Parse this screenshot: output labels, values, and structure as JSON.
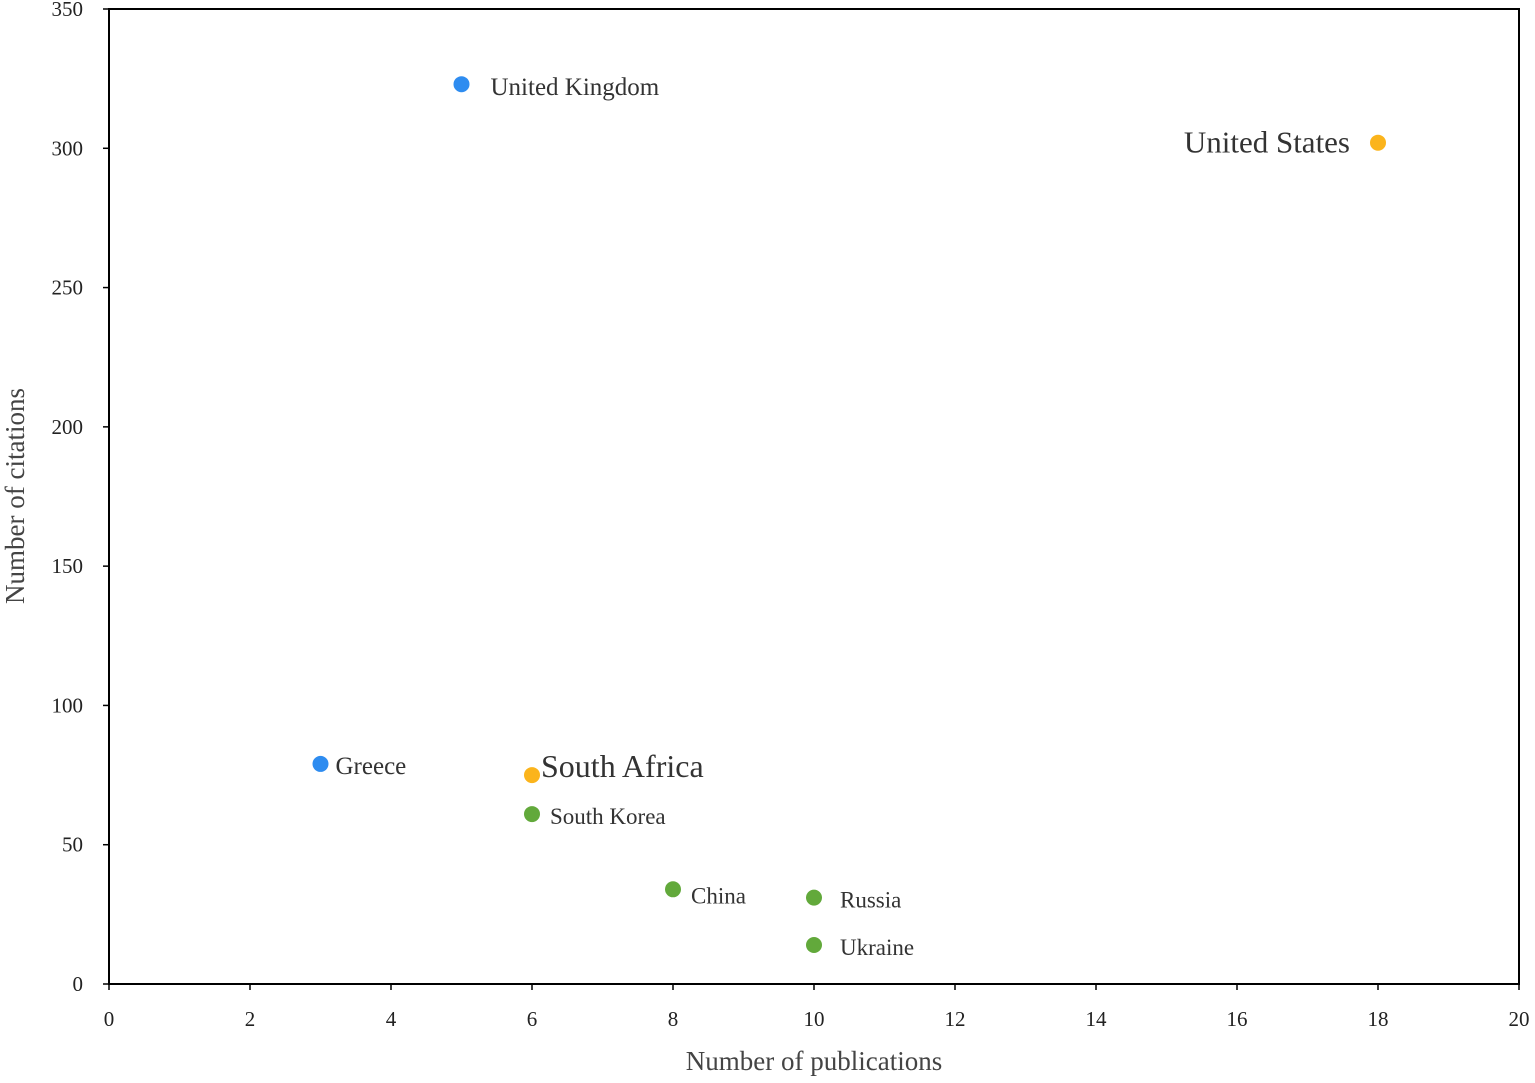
{
  "chart_data": {
    "type": "scatter",
    "title": "",
    "xlabel": "Number of publications",
    "ylabel": "Number of citations",
    "xlim": [
      0,
      20
    ],
    "ylim": [
      0,
      350
    ],
    "x_ticks": [
      0,
      2,
      4,
      6,
      8,
      10,
      12,
      14,
      16,
      18,
      20
    ],
    "y_ticks": [
      0,
      50,
      100,
      150,
      200,
      250,
      300,
      350
    ],
    "grid": false,
    "legend": "none",
    "colors": {
      "blue": "#2e8cf0",
      "orange": "#fbb41c",
      "green": "#62a93b"
    },
    "points": [
      {
        "label": "United Kingdom",
        "x": 5,
        "y": 323,
        "color": "blue"
      },
      {
        "label": "United States",
        "x": 18,
        "y": 302,
        "color": "orange"
      },
      {
        "label": "Greece",
        "x": 3,
        "y": 79,
        "color": "blue"
      },
      {
        "label": "South Africa",
        "x": 6,
        "y": 75,
        "color": "orange"
      },
      {
        "label": "South Korea",
        "x": 6,
        "y": 61,
        "color": "green"
      },
      {
        "label": "China",
        "x": 8,
        "y": 34,
        "color": "green"
      },
      {
        "label": "Russia",
        "x": 10,
        "y": 31,
        "color": "green"
      },
      {
        "label": "Ukraine",
        "x": 10,
        "y": 14,
        "color": "green"
      }
    ]
  }
}
